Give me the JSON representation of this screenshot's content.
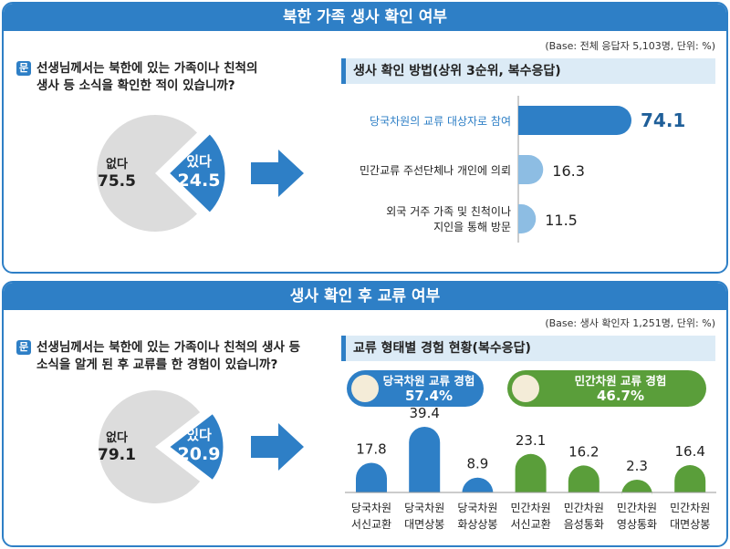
{
  "section1": {
    "title": "북한 가족 생사 확인 여부",
    "base": "(Base: 전체 응답자 5,103명, 단위: %)",
    "question_icon": "문",
    "question_l1": "선생님께서는 북한에 있는 가족이나 친척의",
    "question_l2": "생사 등 소식을 확인한 적이 있습니까?",
    "subtitle": "생사 확인 방법(상위 3순위, 복수응답)"
  },
  "section2": {
    "title": "생사 확인 후 교류 여부",
    "base": "(Base: 생사 확인자 1,251명, 단위: %)",
    "question_icon": "문",
    "question_l1": "선생님께서는 북한에 있는 가족이나 친척의 생사 등",
    "question_l2": "소식을 알게 된 후 교류를 한 경험이 있습니까?",
    "subtitle": "교류 형태별 경험 현황(복수응답)",
    "pills": [
      {
        "label": "당국차원 교류 경험",
        "value": "57.4%",
        "color": "#2e7fc6"
      },
      {
        "label": "민간차원 교류 경험",
        "value": "46.7%",
        "color": "#5a9e3a"
      }
    ]
  },
  "colors": {
    "blue": "#2e7fc6",
    "light_blue": "#8dbde3",
    "green": "#5a9e3a",
    "grey": "#dcdcdc"
  },
  "chart_data": [
    {
      "type": "pie",
      "slices": [
        {
          "label": "없다",
          "value": 75.5,
          "color": "#dcdcdc"
        },
        {
          "label": "있다",
          "value": 24.5,
          "color": "#2e7fc6"
        }
      ]
    },
    {
      "type": "bar",
      "orientation": "horizontal",
      "categories": [
        "당국차원의 교류 대상자로 참여",
        "민간교류 주선단체나 개인에 의뢰",
        "외국 거주 가족 및 친척이나 지인을 통해 방문"
      ],
      "values": [
        74.1,
        16.3,
        11.5
      ],
      "labels": [
        "74.1",
        "16.3",
        "11.5"
      ]
    },
    {
      "type": "pie",
      "slices": [
        {
          "label": "없다",
          "value": 79.1,
          "color": "#dcdcdc"
        },
        {
          "label": "있다",
          "value": 20.9,
          "color": "#2e7fc6"
        }
      ]
    },
    {
      "type": "bar",
      "categories": [
        [
          "당국차원",
          "서신교환"
        ],
        [
          "당국차원",
          "대면상봉"
        ],
        [
          "당국차원",
          "화상상봉"
        ],
        [
          "민간차원",
          "서신교환"
        ],
        [
          "민간차원",
          "음성통화"
        ],
        [
          "민간차원",
          "영상통화"
        ],
        [
          "민간차원",
          "대면상봉"
        ]
      ],
      "values": [
        17.8,
        39.4,
        8.9,
        23.1,
        16.2,
        2.3,
        16.4
      ],
      "labels": [
        "17.8",
        "39.4",
        "8.9",
        "23.1",
        "16.2",
        "2.3",
        "16.4"
      ],
      "colors": [
        "#2e7fc6",
        "#2e7fc6",
        "#2e7fc6",
        "#5a9e3a",
        "#5a9e3a",
        "#5a9e3a",
        "#5a9e3a"
      ]
    }
  ]
}
